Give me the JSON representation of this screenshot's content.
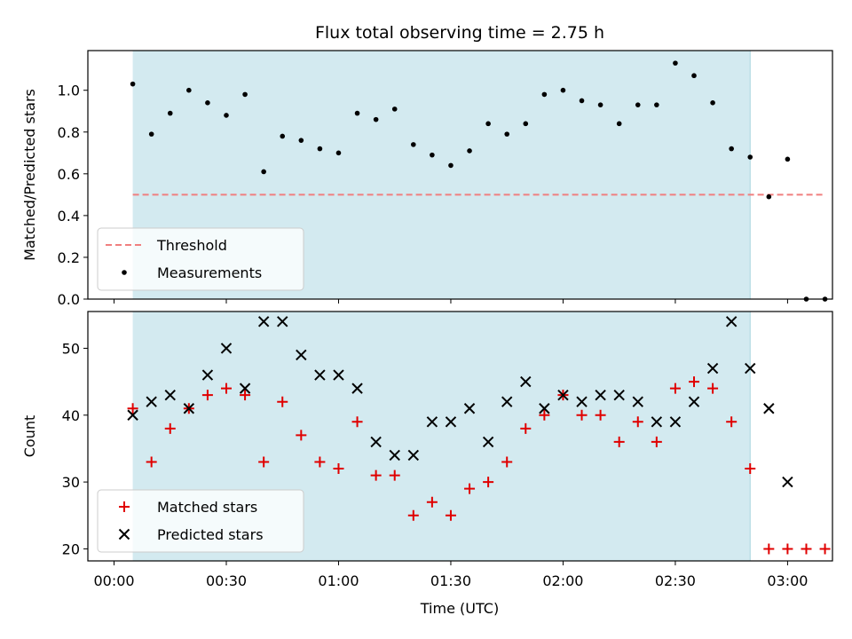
{
  "figure": {
    "title": "Flux total observing time = 2.75 h",
    "xlabel": "Time (UTC)",
    "x_tick_labels": [
      "00:00",
      "00:30",
      "01:00",
      "01:30",
      "02:00",
      "02:30",
      "03:00"
    ]
  },
  "colors": {
    "shade": "#d3eaf0",
    "shade_edge": "#a9d6df",
    "threshold": "#f07f7f",
    "measurement": "#000000",
    "matched": "#e00000",
    "predicted": "#000000"
  },
  "chart_data": [
    {
      "type": "scatter",
      "title": "Flux total observing time = 2.75 h",
      "xlabel": "Time (UTC)",
      "ylabel": "Matched/Predicted stars",
      "x_unit": "minutes after 00:00 UTC",
      "xlim": [
        -7,
        192
      ],
      "ylim": [
        0,
        1.19
      ],
      "y_ticks": [
        "0.0",
        "0.2",
        "0.4",
        "0.6",
        "0.8",
        "1.0"
      ],
      "shaded_interval": [
        5,
        170
      ],
      "legend_position": "lower-left",
      "series": [
        {
          "name": "Threshold",
          "kind": "dashed-line",
          "color": "#f07f7f",
          "x": [
            5,
            190
          ],
          "y": [
            0.5,
            0.5
          ]
        },
        {
          "name": "Measurements",
          "kind": "dots",
          "color": "#000000",
          "x": [
            5,
            10,
            15,
            20,
            25,
            30,
            35,
            40,
            45,
            50,
            55,
            60,
            65,
            70,
            75,
            80,
            85,
            90,
            95,
            100,
            105,
            110,
            115,
            120,
            125,
            130,
            135,
            140,
            145,
            150,
            155,
            160,
            165,
            170,
            175,
            180,
            185,
            190
          ],
          "y": [
            1.03,
            0.79,
            0.89,
            1.0,
            0.94,
            0.88,
            0.98,
            0.61,
            0.78,
            0.76,
            0.72,
            0.7,
            0.89,
            0.86,
            0.91,
            0.74,
            0.69,
            0.64,
            0.71,
            0.84,
            0.79,
            0.84,
            0.98,
            1.0,
            0.95,
            0.93,
            0.84,
            0.93,
            0.93,
            1.13,
            1.07,
            0.94,
            0.72,
            0.68,
            0.49,
            0.67,
            0.0,
            0.0
          ]
        }
      ]
    },
    {
      "type": "scatter",
      "ylabel": "Count",
      "xlabel": "Time (UTC)",
      "x_unit": "minutes after 00:00 UTC",
      "xlim": [
        -7,
        192
      ],
      "ylim": [
        18.2,
        55.5
      ],
      "y_ticks": [
        "20",
        "30",
        "40",
        "50"
      ],
      "shaded_interval": [
        5,
        170
      ],
      "legend_position": "lower-left",
      "series": [
        {
          "name": "Matched stars",
          "marker": "+",
          "color": "#e00000",
          "x": [
            5,
            10,
            15,
            20,
            25,
            30,
            35,
            40,
            45,
            50,
            55,
            60,
            65,
            70,
            75,
            80,
            85,
            90,
            95,
            100,
            105,
            110,
            115,
            120,
            125,
            130,
            135,
            140,
            145,
            150,
            155,
            160,
            165,
            170,
            175,
            180,
            185,
            190
          ],
          "y": [
            41,
            33,
            38,
            41,
            43,
            44,
            43,
            33,
            42,
            37,
            33,
            32,
            39,
            31,
            31,
            25,
            27,
            25,
            29,
            30,
            33,
            38,
            40,
            43,
            40,
            40,
            36,
            39,
            36,
            44,
            45,
            44,
            39,
            32,
            20,
            20,
            20,
            20
          ]
        },
        {
          "name": "Predicted stars",
          "marker": "x",
          "color": "#000000",
          "x": [
            5,
            10,
            15,
            20,
            25,
            30,
            35,
            40,
            45,
            50,
            55,
            60,
            65,
            70,
            75,
            80,
            85,
            90,
            95,
            100,
            105,
            110,
            115,
            120,
            125,
            130,
            135,
            140,
            145,
            150,
            155,
            160,
            165,
            170,
            175,
            180
          ],
          "y": [
            40,
            42,
            43,
            41,
            46,
            50,
            44,
            54,
            54,
            49,
            46,
            46,
            44,
            36,
            34,
            34,
            39,
            39,
            41,
            36,
            42,
            45,
            41,
            43,
            42,
            43,
            43,
            42,
            39,
            39,
            42,
            47,
            54,
            47,
            41,
            30
          ]
        }
      ]
    }
  ]
}
